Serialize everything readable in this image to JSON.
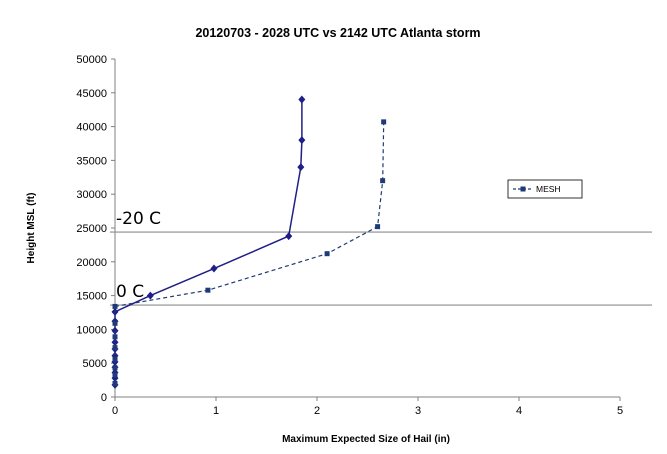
{
  "chart_data": {
    "type": "line",
    "title": "20120703  - 2028 UTC  vs 2142 UTC Atlanta storm",
    "xlabel": "Maximum Expected Size of Hail (in)",
    "ylabel": "Height MSL (ft)",
    "xlim": [
      0,
      5
    ],
    "ylim": [
      0,
      50000
    ],
    "x_ticks": [
      "0",
      "1",
      "2",
      "3",
      "4",
      "5"
    ],
    "y_ticks": [
      "0",
      "5000",
      "10000",
      "15000",
      "20000",
      "25000",
      "30000",
      "35000",
      "40000",
      "45000",
      "50000"
    ],
    "grid": false,
    "legend_position": "right",
    "reference_lines": [
      {
        "label": "-20 C",
        "y": 24400,
        "color": "#8c8c8c"
      },
      {
        "label": "0 C",
        "y": 13600,
        "color": "#8c8c8c"
      }
    ],
    "series": [
      {
        "name": "",
        "style": "solid",
        "marker": "diamond",
        "color": "#1f1f87",
        "points": [
          [
            0.0,
            1800
          ],
          [
            0.0,
            2800
          ],
          [
            0.0,
            3600
          ],
          [
            0.0,
            4400
          ],
          [
            0.0,
            5200
          ],
          [
            0.0,
            6100
          ],
          [
            0.0,
            7100
          ],
          [
            0.0,
            8100
          ],
          [
            0.0,
            9800
          ],
          [
            0.0,
            11200
          ],
          [
            0.0,
            12600
          ],
          [
            0.35,
            15000
          ],
          [
            0.98,
            19000
          ],
          [
            1.72,
            23800
          ],
          [
            1.84,
            34000
          ],
          [
            1.85,
            38000
          ],
          [
            1.85,
            44000
          ]
        ]
      },
      {
        "name": "MESH",
        "style": "dashed",
        "marker": "square",
        "color": "#1f3a78",
        "points": [
          [
            0.0,
            2000
          ],
          [
            0.0,
            3300
          ],
          [
            0.0,
            4300
          ],
          [
            0.0,
            5600
          ],
          [
            0.0,
            7300
          ],
          [
            0.0,
            8900
          ],
          [
            0.0,
            10900
          ],
          [
            0.0,
            13400
          ],
          [
            0.92,
            15800
          ],
          [
            2.1,
            21200
          ],
          [
            2.6,
            25200
          ],
          [
            2.65,
            32000
          ],
          [
            2.66,
            40700
          ]
        ]
      }
    ]
  }
}
